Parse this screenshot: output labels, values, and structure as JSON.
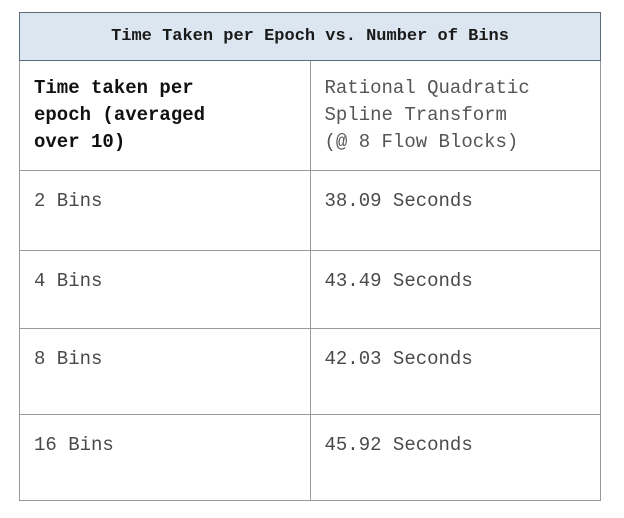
{
  "table": {
    "title": "Time Taken per Epoch vs. Number of Bins",
    "header_left_lines": [
      "Time taken per",
      "epoch (averaged",
      "over 10)"
    ],
    "header_right_lines": [
      "Rational Quadratic",
      "Spline Transform",
      "(@ 8 Flow Blocks)"
    ],
    "rows": [
      {
        "bins": "2 Bins",
        "time": "38.09 Seconds"
      },
      {
        "bins": "4 Bins",
        "time": "43.49 Seconds"
      },
      {
        "bins": "8 Bins",
        "time": "42.03 Seconds"
      },
      {
        "bins": "16 Bins",
        "time": "45.92 Seconds"
      }
    ]
  },
  "colors": {
    "title_background": "#dbe6f1",
    "border": "#9a9a9a"
  }
}
